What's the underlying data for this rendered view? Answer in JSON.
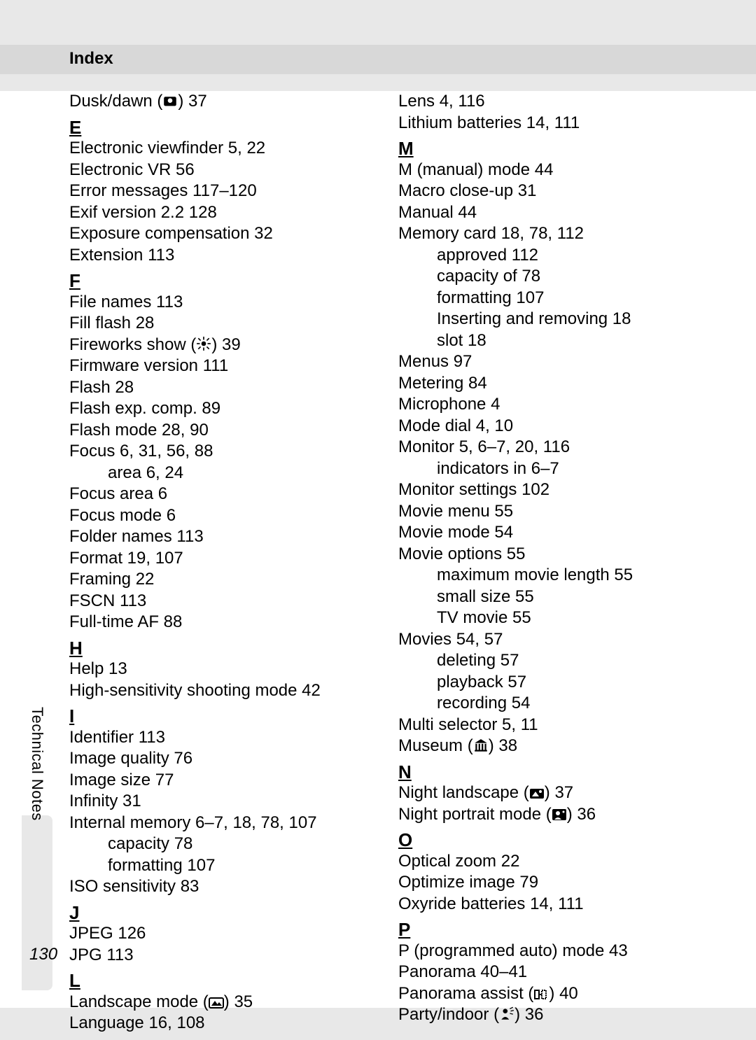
{
  "header": "Index",
  "side_tab": "Technical Notes",
  "page_number": "130",
  "col1": [
    {
      "t": "entry",
      "text": "Dusk/dawn (",
      "icon": "dusk",
      "tail": ") 37"
    },
    {
      "t": "letter",
      "text": "E"
    },
    {
      "t": "entry",
      "text": "Electronic viewfinder 5, 22"
    },
    {
      "t": "entry",
      "text": "Electronic VR 56"
    },
    {
      "t": "entry",
      "text": "Error messages 117–120"
    },
    {
      "t": "entry",
      "text": "Exif version 2.2 128"
    },
    {
      "t": "entry",
      "text": "Exposure compensation 32"
    },
    {
      "t": "entry",
      "text": "Extension 113"
    },
    {
      "t": "letter",
      "text": "F"
    },
    {
      "t": "entry",
      "text": "File names 113"
    },
    {
      "t": "entry",
      "text": "Fill flash 28"
    },
    {
      "t": "entry",
      "text": "Fireworks show (",
      "icon": "fireworks",
      "tail": ") 39"
    },
    {
      "t": "entry",
      "text": "Firmware version 111"
    },
    {
      "t": "entry",
      "text": "Flash 28"
    },
    {
      "t": "entry",
      "text": "Flash exp. comp. 89"
    },
    {
      "t": "entry",
      "text": "Flash mode 28, 90"
    },
    {
      "t": "entry",
      "text": "Focus 6, 31, 56, 88"
    },
    {
      "t": "sub",
      "text": "area 6, 24"
    },
    {
      "t": "entry",
      "text": "Focus area 6"
    },
    {
      "t": "entry",
      "text": "Focus mode 6"
    },
    {
      "t": "entry",
      "text": "Folder names 113"
    },
    {
      "t": "entry",
      "text": "Format 19, 107"
    },
    {
      "t": "entry",
      "text": "Framing 22"
    },
    {
      "t": "entry",
      "text": "FSCN 113"
    },
    {
      "t": "entry",
      "text": "Full-time AF 88"
    },
    {
      "t": "letter",
      "text": "H"
    },
    {
      "t": "entry",
      "text": "Help 13"
    },
    {
      "t": "entry",
      "text": "High-sensitivity shooting mode 42"
    },
    {
      "t": "letter",
      "text": "I"
    },
    {
      "t": "entry",
      "text": "Identifier 113"
    },
    {
      "t": "entry",
      "text": "Image quality 76"
    },
    {
      "t": "entry",
      "text": "Image size 77"
    },
    {
      "t": "entry",
      "text": "Infinity 31"
    },
    {
      "t": "entry",
      "text": "Internal memory 6–7, 18, 78, 107"
    },
    {
      "t": "sub",
      "text": "capacity 78"
    },
    {
      "t": "sub",
      "text": "formatting 107"
    },
    {
      "t": "entry",
      "text": "ISO sensitivity 83"
    },
    {
      "t": "letter",
      "text": "J"
    },
    {
      "t": "entry",
      "text": "JPEG 126"
    },
    {
      "t": "entry",
      "text": "JPG 113"
    },
    {
      "t": "letter",
      "text": "L"
    },
    {
      "t": "entry",
      "text": "Landscape mode (",
      "icon": "landscape",
      "tail": ") 35"
    },
    {
      "t": "entry",
      "text": "Language 16, 108"
    }
  ],
  "col2": [
    {
      "t": "entry",
      "text": "Lens 4, 116"
    },
    {
      "t": "entry",
      "text": "Lithium batteries 14, 111"
    },
    {
      "t": "letter",
      "text": "M"
    },
    {
      "t": "entry",
      "text": "M (manual) mode 44"
    },
    {
      "t": "entry",
      "text": "Macro close-up 31"
    },
    {
      "t": "entry",
      "text": "Manual 44"
    },
    {
      "t": "entry",
      "text": "Memory card 18, 78, 112"
    },
    {
      "t": "sub",
      "text": "approved 112"
    },
    {
      "t": "sub",
      "text": "capacity of 78"
    },
    {
      "t": "sub",
      "text": "formatting 107"
    },
    {
      "t": "sub",
      "text": "Inserting and removing 18"
    },
    {
      "t": "sub",
      "text": "slot 18"
    },
    {
      "t": "entry",
      "text": "Menus 97"
    },
    {
      "t": "entry",
      "text": "Metering 84"
    },
    {
      "t": "entry",
      "text": "Microphone 4"
    },
    {
      "t": "entry",
      "text": "Mode dial 4, 10"
    },
    {
      "t": "entry",
      "text": "Monitor 5, 6–7, 20, 116"
    },
    {
      "t": "sub",
      "text": "indicators in 6–7"
    },
    {
      "t": "entry",
      "text": "Monitor settings 102"
    },
    {
      "t": "entry",
      "text": "Movie menu 55"
    },
    {
      "t": "entry",
      "text": "Movie mode 54"
    },
    {
      "t": "entry",
      "text": "Movie options 55"
    },
    {
      "t": "sub",
      "text": "maximum movie length 55"
    },
    {
      "t": "sub",
      "text": "small size 55"
    },
    {
      "t": "sub",
      "text": "TV movie 55"
    },
    {
      "t": "entry",
      "text": "Movies 54, 57"
    },
    {
      "t": "sub",
      "text": "deleting 57"
    },
    {
      "t": "sub",
      "text": "playback 57"
    },
    {
      "t": "sub",
      "text": "recording 54"
    },
    {
      "t": "entry",
      "text": "Multi selector 5, 11"
    },
    {
      "t": "entry",
      "text": "Museum (",
      "icon": "museum",
      "tail": ") 38"
    },
    {
      "t": "letter",
      "text": "N"
    },
    {
      "t": "entry",
      "text": "Night landscape (",
      "icon": "nightland",
      "tail": ") 37"
    },
    {
      "t": "entry",
      "text": "Night portrait mode (",
      "icon": "nightport",
      "tail": ") 36"
    },
    {
      "t": "letter",
      "text": "O"
    },
    {
      "t": "entry",
      "text": "Optical zoom 22"
    },
    {
      "t": "entry",
      "text": "Optimize image 79"
    },
    {
      "t": "entry",
      "text": "Oxyride batteries 14, 111"
    },
    {
      "t": "letter",
      "text": "P"
    },
    {
      "t": "entry",
      "text": "P (programmed auto) mode 43"
    },
    {
      "t": "entry",
      "text": "Panorama 40–41"
    },
    {
      "t": "entry",
      "text": "Panorama assist (",
      "icon": "panorama",
      "tail": ") 40"
    },
    {
      "t": "entry",
      "text": "Party/indoor (",
      "icon": "party",
      "tail": ") 36"
    }
  ],
  "icons": {
    "dusk": "<svg viewBox='0 0 20 16'><rect x='2' y='2' width='16' height='12' rx='2' fill='#000'/><circle cx='10' cy='7' r='3' fill='#fff'/></svg>",
    "fireworks": "<svg viewBox='0 0 20 20'><circle cx='10' cy='10' r='3' fill='#000'/><g stroke='#000' stroke-width='1.5'><line x1='10' y1='1' x2='10' y2='5'/><line x1='10' y1='15' x2='10' y2='19'/><line x1='1' y1='10' x2='5' y2='10'/><line x1='15' y1='10' x2='19' y2='10'/><line x1='3' y1='3' x2='6' y2='6'/><line x1='14' y1='14' x2='17' y2='17'/><line x1='3' y1='17' x2='6' y2='14'/><line x1='14' y1='6' x2='17' y2='3'/></g></svg>",
    "landscape": "<svg viewBox='0 0 22 16'><rect x='1' y='1' width='20' height='14' rx='2' fill='none' stroke='#000' stroke-width='2'/><polygon points='4,12 9,5 14,12' fill='#000'/><polygon points='11,12 15,7 19,12' fill='#000'/></svg>",
    "museum": "<svg viewBox='0 0 20 18'><polygon points='2,6 10,1 18,6' fill='#000'/><rect x='3' y='7' width='2' height='8' fill='#000'/><rect x='7' y='7' width='2' height='8' fill='#000'/><rect x='11' y='7' width='2' height='8' fill='#000'/><rect x='15' y='7' width='2' height='8' fill='#000'/><rect x='2' y='15' width='16' height='2' fill='#000'/></svg>",
    "nightland": "<svg viewBox='0 0 22 16'><rect x='1' y='1' width='20' height='14' rx='2' fill='#000'/><polygon points='4,12 9,5 14,12' fill='#fff'/><circle cx='16' cy='5' r='2' fill='#fff'/></svg>",
    "nightport": "<svg viewBox='0 0 22 18'><rect x='1' y='1' width='20' height='16' rx='2' fill='#000'/><circle cx='9' cy='7' r='3' fill='#fff'/><path d='M4 16 Q9 10 14 16' fill='#fff'/><circle cx='17' cy='5' r='1.5' fill='#fff'/></svg>",
    "panorama": "<svg viewBox='0 0 22 16'><rect x='2' y='2' width='6' height='12' fill='none' stroke='#000' stroke-width='2'/><rect x='12' y='2' width='6' height='12' fill='none' stroke='#000' stroke-width='2' stroke-dasharray='2 1'/><line x1='8' y1='8' x2='12' y2='8' stroke='#000' stroke-width='2'/></svg>",
    "party": "<svg viewBox='0 0 20 20'><circle cx='8' cy='7' r='3' fill='#000'/><path d='M3 18 Q8 11 13 18' fill='#000'/><g stroke='#000' stroke-width='1.2'><line x1='14' y1='4' x2='18' y2='2'/><line x1='15' y1='7' x2='19' y2='6'/><line x1='14' y1='10' x2='18' y2='11'/></g></svg>"
  }
}
